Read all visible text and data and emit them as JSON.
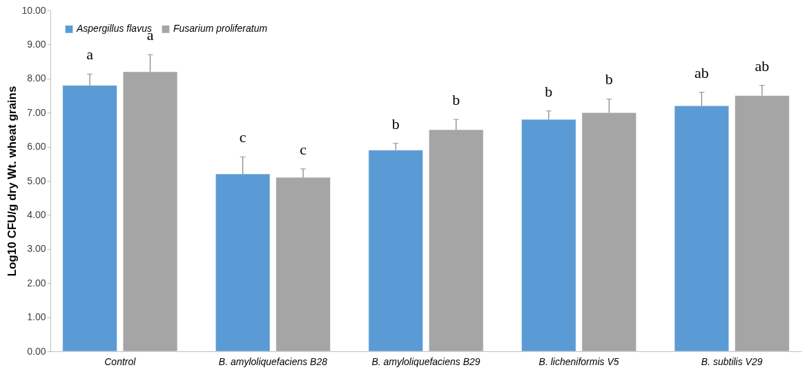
{
  "chart_data": {
    "type": "bar",
    "ylabel": "Log10 CFU/g dry Wt. wheat grains",
    "categories": [
      "Control",
      "B. amyloliquefaciens B28",
      "B. amyloliquefaciens B29",
      "B. licheniformis V5",
      "B. subtilis V29"
    ],
    "series": [
      {
        "name": "Aspergillus flavus",
        "color": "#5b9bd5",
        "values": [
          7.8,
          5.2,
          5.9,
          6.8,
          7.2
        ],
        "errors": [
          0.33,
          0.5,
          0.2,
          0.25,
          0.4
        ],
        "value_labels": [
          "a",
          "c",
          "b",
          "b",
          "ab"
        ]
      },
      {
        "name": "Fusarium proliferatum",
        "color": "#a5a5a5",
        "values": [
          8.2,
          5.1,
          6.5,
          7.0,
          7.5
        ],
        "errors": [
          0.5,
          0.25,
          0.3,
          0.4,
          0.3
        ],
        "value_labels": [
          "a",
          "c",
          "b",
          "b",
          "ab"
        ]
      }
    ],
    "ylim": [
      0,
      10
    ],
    "yticks": [
      {
        "value": 0,
        "label": "0.00"
      },
      {
        "value": 1,
        "label": "1.00"
      },
      {
        "value": 2,
        "label": "2.00"
      },
      {
        "value": 3,
        "label": "3.00"
      },
      {
        "value": 4,
        "label": "4.00"
      },
      {
        "value": 5,
        "label": "5.00"
      },
      {
        "value": 6,
        "label": "6.00"
      },
      {
        "value": 7,
        "label": "7.00"
      },
      {
        "value": 8,
        "label": "8.00"
      },
      {
        "value": 9,
        "label": "9.00"
      },
      {
        "value": 10,
        "label": "10.00"
      }
    ],
    "grid": false,
    "legend": "top left"
  }
}
